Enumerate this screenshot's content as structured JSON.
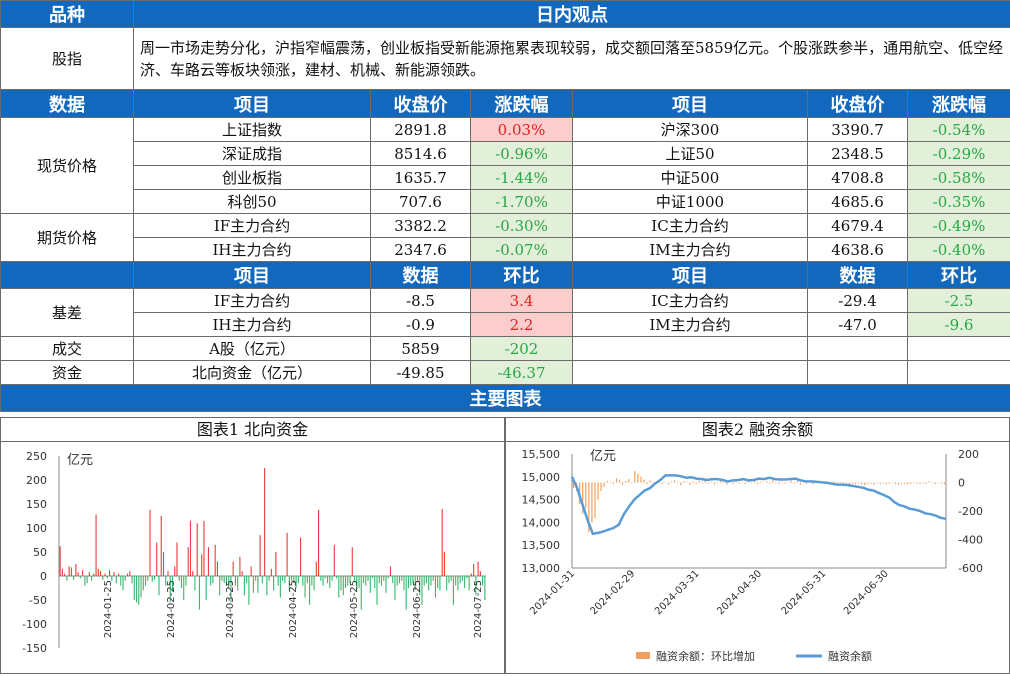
{
  "header": {
    "category_label": "品种",
    "view_label": "日内观点"
  },
  "view": {
    "category": "股指",
    "text": "周一市场走势分化，沪指窄幅震荡，创业板指受新能源拖累表现较弱，成交额回落至5859亿元。个股涨跌参半，通用航空、低空经济、车路云等板块领涨，建材、机械、新能源领跌。"
  },
  "data_header": {
    "data": "数据",
    "item": "项目",
    "close": "收盘价",
    "change": "涨跌幅"
  },
  "spot": {
    "label": "现货价格",
    "left": [
      {
        "name": "上证指数",
        "close": "2891.8",
        "chg": "0.03%",
        "dir": "pos"
      },
      {
        "name": "深证成指",
        "close": "8514.6",
        "chg": "-0.96%",
        "dir": "neg"
      },
      {
        "name": "创业板指",
        "close": "1635.7",
        "chg": "-1.44%",
        "dir": "neg"
      },
      {
        "name": "科创50",
        "close": "707.6",
        "chg": "-1.70%",
        "dir": "neg"
      }
    ],
    "right": [
      {
        "name": "沪深300",
        "close": "3390.7",
        "chg": "-0.54%",
        "dir": "neg"
      },
      {
        "name": "上证50",
        "close": "2348.5",
        "chg": "-0.29%",
        "dir": "neg"
      },
      {
        "name": "中证500",
        "close": "4708.8",
        "chg": "-0.58%",
        "dir": "neg"
      },
      {
        "name": "中证1000",
        "close": "4685.6",
        "chg": "-0.35%",
        "dir": "neg"
      }
    ]
  },
  "futures": {
    "label": "期货价格",
    "left": [
      {
        "name": "IF主力合约",
        "close": "3382.2",
        "chg": "-0.30%",
        "dir": "neg"
      },
      {
        "name": "IH主力合约",
        "close": "2347.6",
        "chg": "-0.07%",
        "dir": "neg"
      }
    ],
    "right": [
      {
        "name": "IC主力合约",
        "close": "4679.4",
        "chg": "-0.49%",
        "dir": "neg"
      },
      {
        "name": "IM主力合约",
        "close": "4638.6",
        "chg": "-0.40%",
        "dir": "neg"
      }
    ]
  },
  "basis_header": {
    "item": "项目",
    "data": "数据",
    "change": "环比"
  },
  "basis": {
    "label": "基差",
    "left": [
      {
        "name": "IF主力合约",
        "value": "-8.5",
        "chg": "3.4",
        "dir": "pos"
      },
      {
        "name": "IH主力合约",
        "value": "-0.9",
        "chg": "2.2",
        "dir": "pos"
      }
    ],
    "right": [
      {
        "name": "IC主力合约",
        "value": "-29.4",
        "chg": "-2.5",
        "dir": "neg"
      },
      {
        "name": "IM主力合约",
        "value": "-47.0",
        "chg": "-9.6",
        "dir": "neg"
      }
    ]
  },
  "turnover": {
    "label": "成交",
    "name": "A股（亿元）",
    "value": "5859",
    "chg": "-202",
    "dir": "neg"
  },
  "capital": {
    "label": "资金",
    "name": "北向资金（亿元）",
    "value": "-49.85",
    "chg": "-46.37",
    "dir": "neg"
  },
  "charts_header": "主要图表",
  "colors": {
    "header_bg": "#1268bd",
    "pos_bg": "#fccdcd",
    "pos_text": "#e32020",
    "neg_bg": "#e2f0d9",
    "neg_text": "#28a745",
    "bar_up": "#e8413c",
    "bar_down": "#3cb86e",
    "margin_bar": "#f0a060",
    "margin_line": "#5b9bd5"
  },
  "chart_data": [
    {
      "type": "bar",
      "title": "图表1  北向资金",
      "ylabel": "亿元",
      "ylim": [
        -150,
        250
      ],
      "yticks": [
        250,
        200,
        150,
        100,
        50,
        0,
        -50,
        -100,
        -150
      ],
      "xticks": [
        "2024-01-25",
        "2024-02-25",
        "2024-03-25",
        "2024-04-25",
        "2024-05-25",
        "2024-06-25",
        "2024-07-25"
      ],
      "x_start": "2024-01-01",
      "x_end": "2024-07-29",
      "values": [
        62,
        15,
        5,
        -10,
        20,
        18,
        -8,
        25,
        8,
        -5,
        12,
        -20,
        -15,
        8,
        -10,
        5,
        128,
        15,
        10,
        -8,
        5,
        -5,
        12,
        -10,
        8,
        -15,
        5,
        -20,
        -30,
        -10,
        5,
        10,
        -15,
        -50,
        -55,
        -60,
        -45,
        -30,
        -20,
        -10,
        138,
        -12,
        -8,
        70,
        -40,
        125,
        50,
        -20,
        10,
        -55,
        -30,
        20,
        70,
        -10,
        -25,
        -50,
        -20,
        60,
        115,
        10,
        -30,
        110,
        -70,
        45,
        115,
        -50,
        60,
        -20,
        -15,
        65,
        30,
        -40,
        -10,
        -15,
        -20,
        -25,
        -55,
        30,
        -20,
        -30,
        40,
        10,
        -40,
        -15,
        -60,
        20,
        -35,
        -10,
        -35,
        85,
        -15,
        225,
        -40,
        -10,
        15,
        -30,
        50,
        -20,
        -45,
        -10,
        -15,
        90,
        -30,
        -10,
        -15,
        -25,
        -15,
        80,
        -20,
        -45,
        -15,
        -60,
        -20,
        -30,
        30,
        138,
        -10,
        -20,
        -5,
        -15,
        -25,
        -10,
        65,
        -5,
        -45,
        -30,
        -40,
        -25,
        -20,
        -15,
        60,
        -10,
        -30,
        -25,
        -70,
        -15,
        -20,
        -10,
        -35,
        -5,
        -25,
        -60,
        -15,
        -20,
        -10,
        -35,
        -5,
        20,
        -15,
        -50,
        -20,
        -15,
        -10,
        -30,
        -70,
        -25,
        -20,
        -15,
        -30,
        -10,
        -40,
        -60,
        -20,
        -15,
        -30,
        -20,
        -10,
        -45,
        -25,
        -30,
        140,
        50,
        -30,
        -15,
        -10,
        -60,
        -20,
        -30,
        -15,
        -10,
        -25,
        -5,
        -30,
        5,
        25,
        -40,
        30,
        10,
        -20,
        -50
      ]
    },
    {
      "type": "bar+line",
      "title": "图表2  融资余额",
      "ylabel": "亿元",
      "y_left_lim": [
        13000,
        15500
      ],
      "y_left_ticks": [
        "15,500",
        "15,000",
        "14,500",
        "14,000",
        "13,500",
        "13,000"
      ],
      "y_right_lim": [
        -600,
        200
      ],
      "y_right_ticks": [
        "200",
        "0",
        "-200",
        "-400",
        "-600"
      ],
      "xticks": [
        "2024-01-31",
        "2024-02-29",
        "2024-03-31",
        "2024-04-30",
        "2024-05-31",
        "2024-06-30"
      ],
      "x_start": "2024-01-31",
      "x_end": "2024-07-29",
      "series": [
        {
          "name": "融资余额：环比增加",
          "axis": "right",
          "values": [
            -40,
            -60,
            -150,
            -220,
            -180,
            -350,
            -280,
            -250,
            -120,
            -60,
            -30,
            10,
            5,
            -10,
            30,
            20,
            -15,
            10,
            25,
            -5,
            80,
            60,
            40,
            20,
            -10,
            15,
            5,
            -8,
            12,
            -10,
            3,
            -12,
            8,
            15,
            -5,
            -20,
            10,
            5,
            -15,
            8,
            -10,
            12,
            -6,
            18,
            -8,
            5,
            -12,
            3,
            10,
            -5,
            -15,
            8,
            -10,
            20,
            -8,
            5,
            -10,
            12,
            -5,
            8,
            -12,
            6,
            -3,
            10,
            -8,
            15,
            -5,
            -10,
            6,
            -8,
            4,
            12,
            -6,
            10,
            -15,
            5,
            -8,
            10,
            -12,
            6,
            -4,
            8,
            -10,
            5,
            -15,
            8,
            -6,
            4,
            -20,
            -5,
            -10,
            -8,
            -12,
            -6,
            -15,
            -20,
            -10,
            -8,
            -14,
            -5,
            -10,
            -6,
            -12,
            -8,
            -4,
            -10,
            -15,
            -6,
            -8,
            -12,
            -10,
            -5,
            -8,
            -12,
            -6,
            -10,
            8,
            -5,
            -10,
            -3,
            -8,
            -12
          ]
        },
        {
          "name": "融资余额",
          "axis": "left",
          "values": [
            15000,
            14750,
            14400,
            14050,
            13750,
            13770,
            13800,
            13840,
            13880,
            13950,
            14180,
            14350,
            14500,
            14600,
            14700,
            14750,
            14850,
            14930,
            15030,
            15030,
            15030,
            15010,
            14980,
            14990,
            14960,
            14950,
            14930,
            14950,
            14950,
            14930,
            14900,
            14920,
            14930,
            14950,
            14920,
            14930,
            14960,
            14950,
            14980,
            14950,
            14940,
            14940,
            14950,
            14960,
            14920,
            14900,
            14900,
            14890,
            14880,
            14870,
            14850,
            14830,
            14830,
            14820,
            14800,
            14780,
            14760,
            14720,
            14700,
            14650,
            14600,
            14550,
            14450,
            14380,
            14350,
            14300,
            14280,
            14250,
            14200,
            14180,
            14150,
            14100,
            14080
          ]
        }
      ]
    }
  ]
}
